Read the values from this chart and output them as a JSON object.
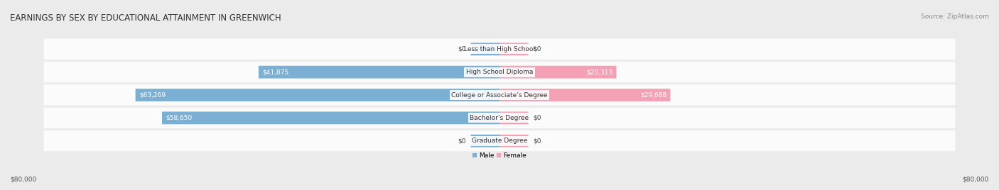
{
  "title": "EARNINGS BY SEX BY EDUCATIONAL ATTAINMENT IN GREENWICH",
  "source": "Source: ZipAtlas.com",
  "categories": [
    "Less than High School",
    "High School Diploma",
    "College or Associate’s Degree",
    "Bachelor’s Degree",
    "Graduate Degree"
  ],
  "male_values": [
    0,
    41875,
    63269,
    58650,
    0
  ],
  "female_values": [
    0,
    20313,
    29688,
    0,
    0
  ],
  "male_color": "#7bafd4",
  "female_color": "#f4a0b5",
  "max_value": 80000,
  "stub_value": 5000,
  "bg_color": "#ebebeb",
  "row_bg_color": "#ffffff",
  "title_fontsize": 8.5,
  "source_fontsize": 6.5,
  "bar_fontsize": 6.5,
  "label_fontsize": 6.5,
  "axis_fontsize": 6.5
}
